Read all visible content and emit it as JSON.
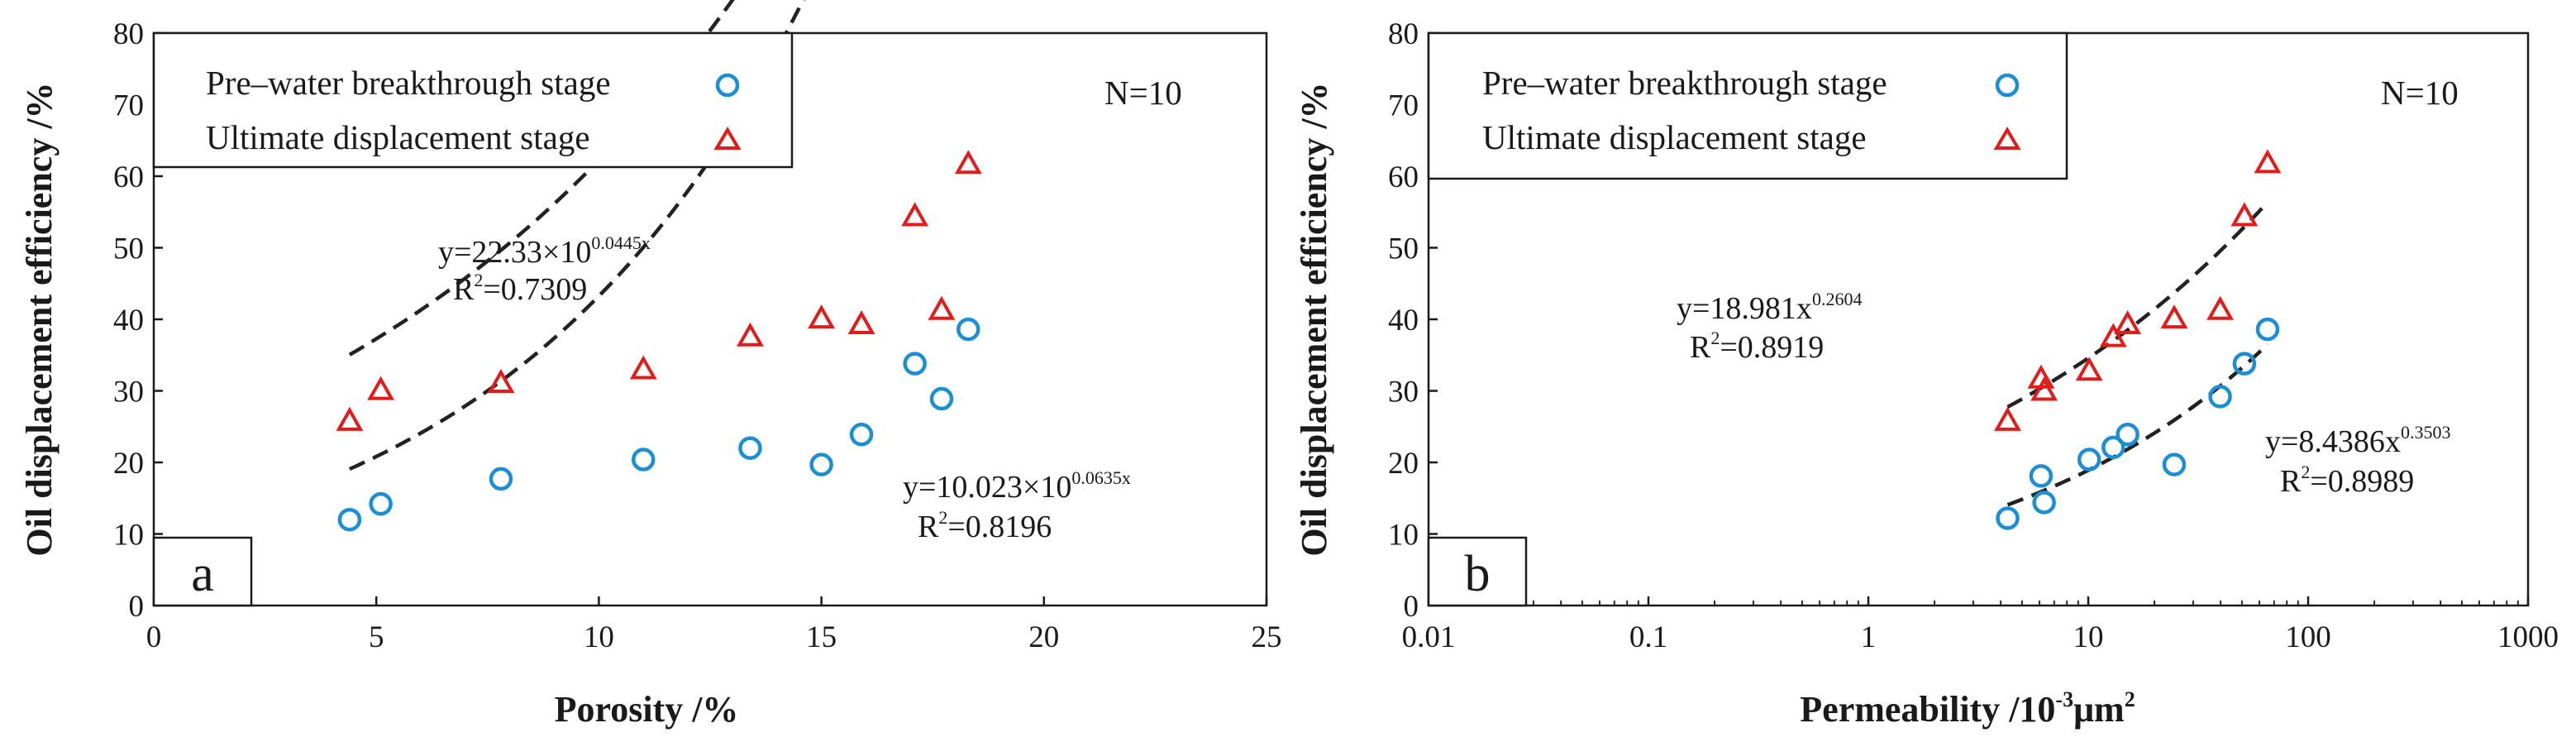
{
  "colors": {
    "pre": "#1a8fd6",
    "ult": "#e21b1b",
    "axis": "#1a1a1a",
    "fit": "#222222"
  },
  "chart_data": [
    {
      "type": "scatter",
      "panel": "a",
      "xscale": "linear",
      "xlabel": "Porosity /%",
      "ylabel": "Oil displacement efficiency /%",
      "xlim": [
        0,
        25
      ],
      "ylim": [
        0,
        80
      ],
      "xticks": [
        "0",
        "5",
        "10",
        "15",
        "20",
        "25"
      ],
      "yticks": [
        "0",
        "10",
        "20",
        "30",
        "40",
        "50",
        "60",
        "70",
        "80"
      ],
      "annotation": "N=10",
      "legend": [
        "Pre–water breakthrough stage",
        "Ultimate displacement stage"
      ],
      "series": [
        {
          "name": "Pre–water breakthrough stage",
          "marker": "circle",
          "x": [
            4.4,
            5.1,
            7.8,
            11.0,
            13.4,
            15.0,
            15.9,
            17.1,
            17.7,
            18.3
          ],
          "y": [
            12.0,
            14.2,
            17.7,
            20.4,
            22.0,
            19.7,
            23.9,
            33.8,
            28.9,
            38.6
          ]
        },
        {
          "name": "Ultimate displacement stage",
          "marker": "triangle",
          "x": [
            4.4,
            5.1,
            7.8,
            11.0,
            13.4,
            15.0,
            15.9,
            17.1,
            17.7,
            18.3
          ],
          "y": [
            25.8,
            30.1,
            31.1,
            33.0,
            37.6,
            40.1,
            39.3,
            54.4,
            41.3,
            61.7
          ]
        }
      ],
      "fits": [
        {
          "series": "Ultimate displacement stage",
          "kind": "exp10",
          "a": 22.33,
          "b": 0.0445,
          "xrange": [
            4.4,
            18.3
          ],
          "pre": "y=22.33×10",
          "sup": "0.0445x",
          "r2": "=0.7309"
        },
        {
          "series": "Pre–water breakthrough stage",
          "kind": "exp10",
          "a": 10.023,
          "b": 0.0635,
          "xrange": [
            4.4,
            18.3
          ],
          "pre": "y=10.023×10",
          "sup": "0.0635x",
          "r2": "=0.8196"
        }
      ]
    },
    {
      "type": "scatter",
      "panel": "b",
      "xscale": "log",
      "xlabel": "Permeability /10",
      "xlabel_sup": "-3",
      "xlabel_unit": "μm",
      "xlabel_unit_sup": "2",
      "ylabel": "Oil displacement efficiency /%",
      "xlim": [
        0.01,
        1000
      ],
      "ylim": [
        0,
        80
      ],
      "xticks": [
        "0.01",
        "0.1",
        "1",
        "10",
        "100",
        "1000"
      ],
      "yticks": [
        "0",
        "10",
        "20",
        "30",
        "40",
        "50",
        "60",
        "70",
        "80"
      ],
      "annotation": "N=10",
      "legend": [
        "Pre–water breakthrough stage",
        "Ultimate displacement stage"
      ],
      "series": [
        {
          "name": "Pre–water breakthrough stage",
          "marker": "circle",
          "x": [
            4.3,
            6.1,
            6.3,
            10.1,
            13.0,
            15.1,
            24.6,
            39.8,
            51.3,
            65.4
          ],
          "y": [
            12.2,
            18.1,
            14.4,
            20.4,
            22.1,
            23.9,
            19.7,
            29.2,
            33.8,
            38.6
          ]
        },
        {
          "name": "Ultimate displacement stage",
          "marker": "triangle",
          "x": [
            4.3,
            6.1,
            6.3,
            10.1,
            13.0,
            15.1,
            24.6,
            39.8,
            51.3,
            65.4
          ],
          "y": [
            25.8,
            31.7,
            30.0,
            32.8,
            37.5,
            39.3,
            40.1,
            41.3,
            54.4,
            61.8
          ]
        }
      ],
      "fits": [
        {
          "series": "Ultimate displacement stage",
          "kind": "power",
          "a": 18.981,
          "b": 0.2604,
          "xrange": [
            4.3,
            65.4
          ],
          "pre": "y=18.981x",
          "sup": "0.2604",
          "r2": "=0.8919"
        },
        {
          "series": "Pre–water breakthrough stage",
          "kind": "power",
          "a": 8.4386,
          "b": 0.3503,
          "xrange": [
            4.3,
            65.4
          ],
          "pre": "y=8.4386x",
          "sup": "0.3503",
          "r2": "=0.8989"
        }
      ]
    }
  ]
}
